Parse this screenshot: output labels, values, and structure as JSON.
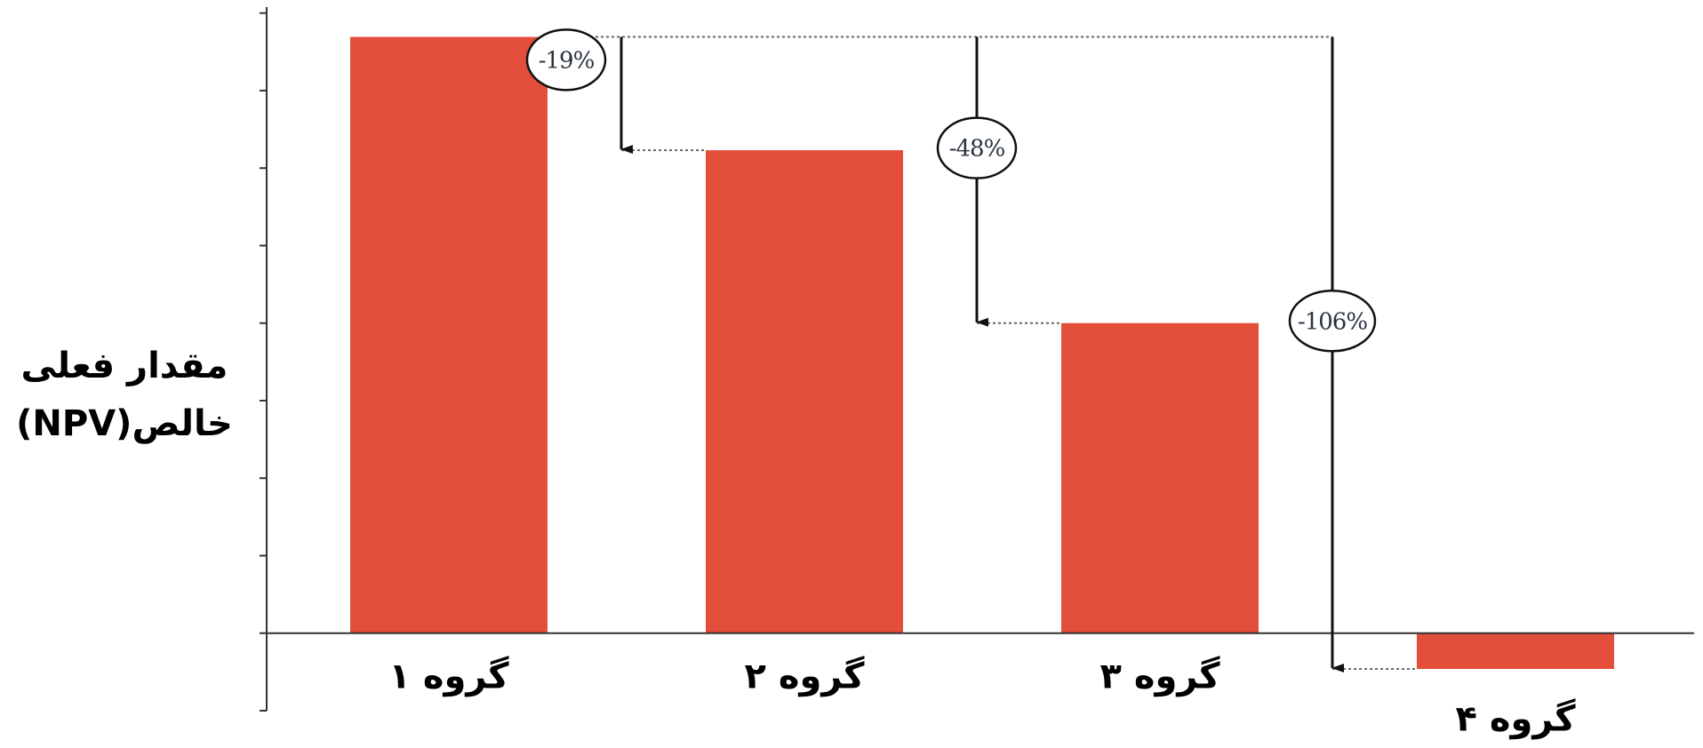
{
  "chart_data": {
    "type": "bar",
    "ylabel_lines": [
      "مقدار فعلی",
      "خالص(NPV)"
    ],
    "categories": [
      "گروه ۱",
      "گروه ۲",
      "گروه ۳",
      "گروه ۴"
    ],
    "values": [
      100,
      81,
      52,
      -6
    ],
    "ylim": [
      -13,
      105
    ],
    "y_ticks": [
      -13,
      0,
      13,
      26,
      39,
      52,
      65,
      78,
      91,
      104
    ],
    "tick_labels_shown": false,
    "grid": false,
    "legend": "none",
    "annotations": [
      {
        "text": "-19%",
        "from": "گروه ۱",
        "to": "گروه ۲"
      },
      {
        "text": "-48%",
        "from": "گروه ۱",
        "to": "گروه ۳"
      },
      {
        "text": "-106%",
        "from": "گروه ۱",
        "to": "گروه ۴"
      }
    ],
    "colors": {
      "bar": "#e34e3a",
      "axis": "#333333",
      "reference_line": "#666666",
      "arrow": "#111111",
      "badge_text": "#2a3540"
    }
  }
}
